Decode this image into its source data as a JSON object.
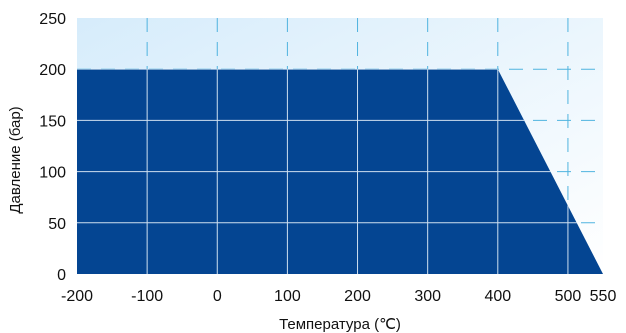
{
  "chart_data": {
    "type": "area",
    "title": "",
    "xlabel": "Температура (℃)",
    "ylabel": "Давление (бар)",
    "xlim": [
      -200,
      550
    ],
    "ylim": [
      0,
      250
    ],
    "x_ticks": [
      -200,
      -100,
      0,
      100,
      200,
      300,
      400,
      500,
      550
    ],
    "x_tick_labels": [
      "-200",
      "-100",
      "0",
      "100",
      "200",
      "300",
      "400",
      "500",
      "550"
    ],
    "y_ticks": [
      0,
      50,
      100,
      150,
      200,
      250
    ],
    "y_tick_labels": [
      "0",
      "50",
      "100",
      "150",
      "200",
      "250"
    ],
    "grid": true,
    "legend": "none",
    "series": [
      {
        "x": [
          -200,
          400,
          550
        ],
        "y": [
          200,
          200,
          0
        ]
      }
    ],
    "colors": {
      "fill": "#044592",
      "background_top": "#d6ecfb",
      "background_bottom": "#ffffff",
      "grid_solid": "#cfe0f0",
      "grid_dashed": "#4fb3df"
    }
  }
}
